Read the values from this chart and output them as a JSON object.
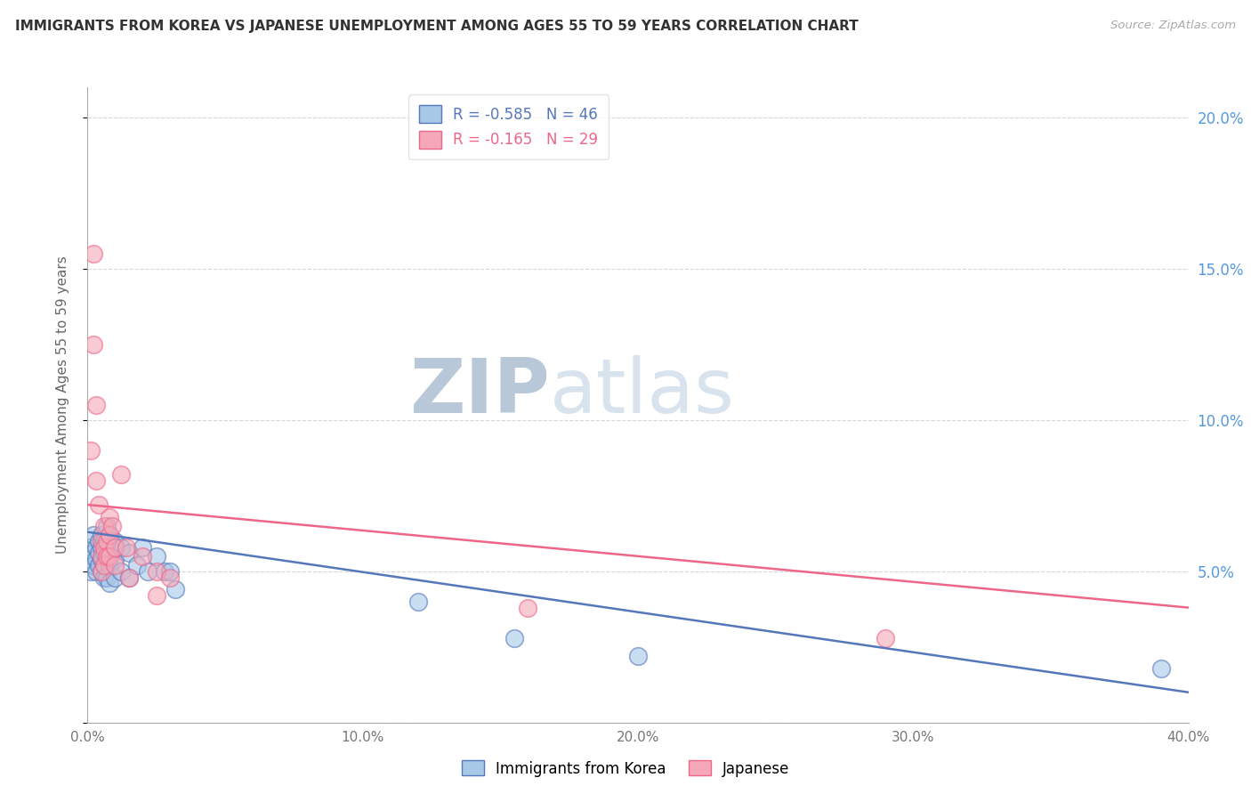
{
  "title": "IMMIGRANTS FROM KOREA VS JAPANESE UNEMPLOYMENT AMONG AGES 55 TO 59 YEARS CORRELATION CHART",
  "source": "Source: ZipAtlas.com",
  "ylabel": "Unemployment Among Ages 55 to 59 years",
  "xlim": [
    0.0,
    0.4
  ],
  "ylim": [
    0.0,
    0.21
  ],
  "xticks": [
    0.0,
    0.05,
    0.1,
    0.15,
    0.2,
    0.25,
    0.3,
    0.35,
    0.4
  ],
  "xticklabels": [
    "0.0%",
    "",
    "10.0%",
    "",
    "20.0%",
    "",
    "30.0%",
    "",
    "40.0%"
  ],
  "yticks_right": [
    0.05,
    0.1,
    0.15,
    0.2
  ],
  "yticklabels_right": [
    "5.0%",
    "10.0%",
    "15.0%",
    "20.0%"
  ],
  "legend_label1": "Immigrants from Korea",
  "legend_label2": "Japanese",
  "R1": -0.585,
  "N1": 46,
  "R2": -0.165,
  "N2": 29,
  "color_blue": "#A8C8E8",
  "color_pink": "#F4A8B8",
  "color_blue_line": "#5577BB",
  "color_pink_line": "#EE6688",
  "watermark_zip": "#C8D8E8",
  "watermark_atlas": "#B8CCE0",
  "blue_points": [
    [
      0.001,
      0.058
    ],
    [
      0.001,
      0.054
    ],
    [
      0.001,
      0.05
    ],
    [
      0.002,
      0.062
    ],
    [
      0.002,
      0.056
    ],
    [
      0.002,
      0.052
    ],
    [
      0.003,
      0.058
    ],
    [
      0.003,
      0.054
    ],
    [
      0.003,
      0.05
    ],
    [
      0.004,
      0.06
    ],
    [
      0.004,
      0.056
    ],
    [
      0.004,
      0.052
    ],
    [
      0.005,
      0.062
    ],
    [
      0.005,
      0.058
    ],
    [
      0.005,
      0.054
    ],
    [
      0.005,
      0.05
    ],
    [
      0.006,
      0.06
    ],
    [
      0.006,
      0.056
    ],
    [
      0.006,
      0.052
    ],
    [
      0.006,
      0.048
    ],
    [
      0.007,
      0.065
    ],
    [
      0.007,
      0.058
    ],
    [
      0.007,
      0.054
    ],
    [
      0.007,
      0.048
    ],
    [
      0.008,
      0.062
    ],
    [
      0.008,
      0.058
    ],
    [
      0.008,
      0.052
    ],
    [
      0.008,
      0.046
    ],
    [
      0.01,
      0.06
    ],
    [
      0.01,
      0.054
    ],
    [
      0.01,
      0.048
    ],
    [
      0.012,
      0.058
    ],
    [
      0.012,
      0.05
    ],
    [
      0.015,
      0.056
    ],
    [
      0.015,
      0.048
    ],
    [
      0.018,
      0.052
    ],
    [
      0.02,
      0.058
    ],
    [
      0.022,
      0.05
    ],
    [
      0.025,
      0.055
    ],
    [
      0.028,
      0.05
    ],
    [
      0.03,
      0.05
    ],
    [
      0.032,
      0.044
    ],
    [
      0.12,
      0.04
    ],
    [
      0.155,
      0.028
    ],
    [
      0.2,
      0.022
    ],
    [
      0.39,
      0.018
    ]
  ],
  "pink_points": [
    [
      0.001,
      0.09
    ],
    [
      0.002,
      0.155
    ],
    [
      0.002,
      0.125
    ],
    [
      0.003,
      0.105
    ],
    [
      0.003,
      0.08
    ],
    [
      0.004,
      0.072
    ],
    [
      0.005,
      0.06
    ],
    [
      0.005,
      0.055
    ],
    [
      0.005,
      0.05
    ],
    [
      0.006,
      0.065
    ],
    [
      0.006,
      0.058
    ],
    [
      0.006,
      0.052
    ],
    [
      0.007,
      0.06
    ],
    [
      0.007,
      0.055
    ],
    [
      0.008,
      0.068
    ],
    [
      0.008,
      0.062
    ],
    [
      0.008,
      0.055
    ],
    [
      0.009,
      0.065
    ],
    [
      0.01,
      0.058
    ],
    [
      0.01,
      0.052
    ],
    [
      0.012,
      0.082
    ],
    [
      0.014,
      0.058
    ],
    [
      0.015,
      0.048
    ],
    [
      0.02,
      0.055
    ],
    [
      0.025,
      0.05
    ],
    [
      0.025,
      0.042
    ],
    [
      0.03,
      0.048
    ],
    [
      0.29,
      0.028
    ],
    [
      0.16,
      0.038
    ]
  ],
  "blue_line_x": [
    0.0,
    0.4
  ],
  "blue_line_y": [
    0.063,
    0.01
  ],
  "pink_line_x": [
    0.0,
    0.4
  ],
  "pink_line_y": [
    0.072,
    0.038
  ]
}
